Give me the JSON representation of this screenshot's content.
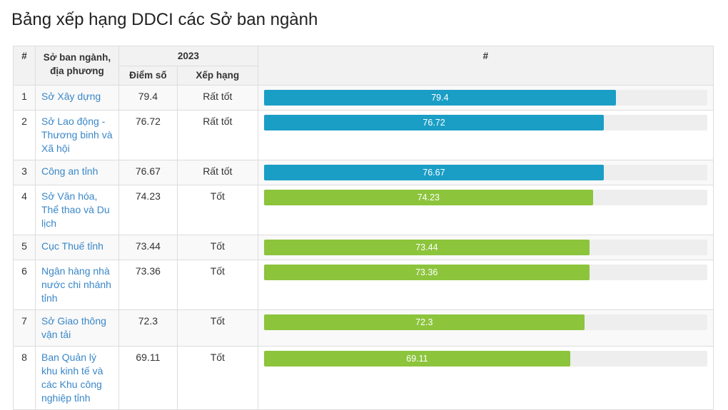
{
  "page": {
    "title": "Bảng xếp hạng DDCI các Sở ban ngành"
  },
  "table": {
    "headers": {
      "index": "#",
      "name": "Sở ban ngành, địa phương",
      "year": "2023",
      "score": "Điểm số",
      "rank": "Xếp hạng",
      "bar": "#"
    },
    "bar_max": 100,
    "colors": {
      "very_good": "#1b9ec5",
      "good": "#8cc43c"
    },
    "rows": [
      {
        "index": "1",
        "name": "Sở Xây dựng",
        "score": "79.4",
        "rank": "Rất tốt",
        "value": 79.4,
        "color": "#1b9ec5"
      },
      {
        "index": "2",
        "name": "Sở Lao động - Thương binh và Xã hội",
        "score": "76.72",
        "rank": "Rất tốt",
        "value": 76.72,
        "color": "#1b9ec5"
      },
      {
        "index": "3",
        "name": "Công an tỉnh",
        "score": "76.67",
        "rank": "Rất tốt",
        "value": 76.67,
        "color": "#1b9ec5"
      },
      {
        "index": "4",
        "name": "Sở Văn hóa, Thể thao và Du lịch",
        "score": "74.23",
        "rank": "Tốt",
        "value": 74.23,
        "color": "#8cc43c"
      },
      {
        "index": "5",
        "name": "Cục Thuế tỉnh",
        "score": "73.44",
        "rank": "Tốt",
        "value": 73.44,
        "color": "#8cc43c"
      },
      {
        "index": "6",
        "name": "Ngân hàng nhà nước chi nhánh tỉnh",
        "score": "73.36",
        "rank": "Tốt",
        "value": 73.36,
        "color": "#8cc43c"
      },
      {
        "index": "7",
        "name": "Sở Giao thông vận tải",
        "score": "72.3",
        "rank": "Tốt",
        "value": 72.3,
        "color": "#8cc43c"
      },
      {
        "index": "8",
        "name": "Ban Quản lý khu kinh tế và các Khu công nghiệp tỉnh",
        "score": "69.11",
        "rank": "Tốt",
        "value": 69.11,
        "color": "#8cc43c"
      }
    ]
  }
}
